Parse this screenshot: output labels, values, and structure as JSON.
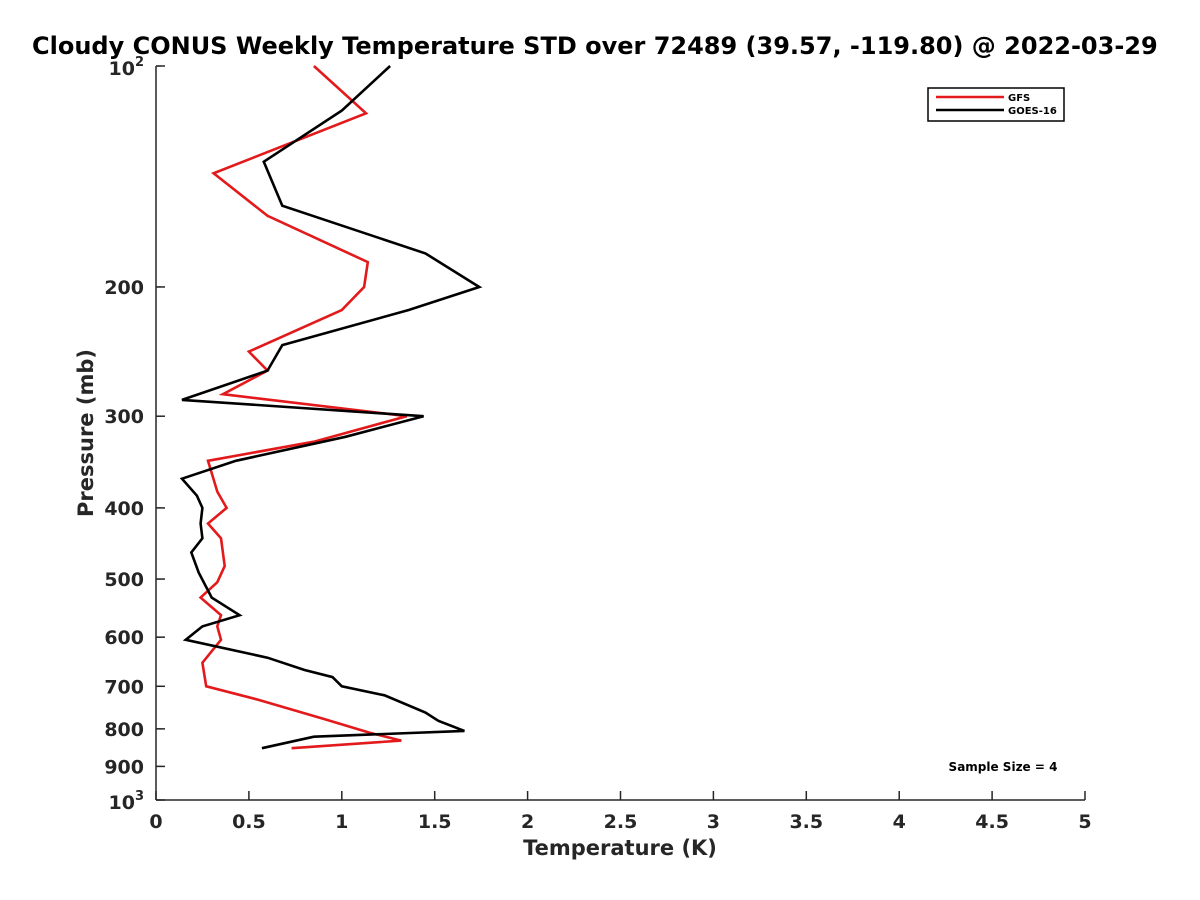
{
  "chart_data": {
    "type": "line",
    "title": "Cloudy CONUS Weekly Temperature STD over 72489 (39.57, -119.80) @ 2022-03-29",
    "xlabel": "Temperature (K)",
    "ylabel": "Pressure (mb)",
    "xlim": [
      0,
      5
    ],
    "ylim": [
      100,
      1000
    ],
    "y_scale": "log",
    "y_reversed": true,
    "x_ticks": [
      "0",
      "0.5",
      "1",
      "1.5",
      "2",
      "2.5",
      "3",
      "3.5",
      "4",
      "4.5",
      "5"
    ],
    "x_tick_values": [
      0,
      0.5,
      1,
      1.5,
      2,
      2.5,
      3,
      3.5,
      4,
      4.5,
      5
    ],
    "y_ticks": [
      {
        "value": 100,
        "base": "10",
        "exp": "2"
      },
      {
        "value": 200,
        "label": "200"
      },
      {
        "value": 300,
        "label": "300"
      },
      {
        "value": 400,
        "label": "400"
      },
      {
        "value": 500,
        "label": "500"
      },
      {
        "value": 600,
        "label": "600"
      },
      {
        "value": 700,
        "label": "700"
      },
      {
        "value": 800,
        "label": "800"
      },
      {
        "value": 900,
        "label": "900"
      },
      {
        "value": 1000,
        "base": "10",
        "exp": "3"
      }
    ],
    "legend_position": "top-right",
    "annotation": "Sample Size = 4",
    "series": [
      {
        "name": "GFS",
        "color": "#e31a1c",
        "points": [
          [
            0.85,
            100
          ],
          [
            1.13,
            116
          ],
          [
            0.31,
            140
          ],
          [
            0.6,
            160
          ],
          [
            1.14,
            185
          ],
          [
            1.12,
            200
          ],
          [
            1.0,
            215
          ],
          [
            0.5,
            245
          ],
          [
            0.6,
            260
          ],
          [
            0.36,
            280
          ],
          [
            1.35,
            300
          ],
          [
            0.85,
            325
          ],
          [
            0.28,
            345
          ],
          [
            0.33,
            380
          ],
          [
            0.38,
            400
          ],
          [
            0.28,
            420
          ],
          [
            0.35,
            440
          ],
          [
            0.37,
            480
          ],
          [
            0.33,
            505
          ],
          [
            0.24,
            530
          ],
          [
            0.35,
            560
          ],
          [
            0.33,
            580
          ],
          [
            0.35,
            605
          ],
          [
            0.25,
            650
          ],
          [
            0.27,
            700
          ],
          [
            0.55,
            730
          ],
          [
            0.9,
            775
          ],
          [
            1.15,
            810
          ],
          [
            1.32,
            830
          ],
          [
            0.73,
            850
          ]
        ]
      },
      {
        "name": "GOES-16",
        "color": "#000000",
        "points": [
          [
            1.26,
            100
          ],
          [
            1.0,
            115
          ],
          [
            0.58,
            135
          ],
          [
            0.68,
            155
          ],
          [
            1.45,
            180
          ],
          [
            1.74,
            200
          ],
          [
            1.36,
            215
          ],
          [
            0.68,
            240
          ],
          [
            0.6,
            260
          ],
          [
            0.14,
            285
          ],
          [
            1.44,
            300
          ],
          [
            1.02,
            320
          ],
          [
            0.43,
            345
          ],
          [
            0.14,
            365
          ],
          [
            0.22,
            385
          ],
          [
            0.25,
            400
          ],
          [
            0.24,
            420
          ],
          [
            0.25,
            440
          ],
          [
            0.19,
            460
          ],
          [
            0.23,
            490
          ],
          [
            0.3,
            530
          ],
          [
            0.45,
            560
          ],
          [
            0.25,
            580
          ],
          [
            0.16,
            605
          ],
          [
            0.6,
            640
          ],
          [
            0.8,
            665
          ],
          [
            0.95,
            680
          ],
          [
            1.0,
            700
          ],
          [
            1.23,
            720
          ],
          [
            1.45,
            760
          ],
          [
            1.52,
            780
          ],
          [
            1.66,
            805
          ],
          [
            0.85,
            820
          ],
          [
            0.57,
            850
          ]
        ]
      }
    ]
  }
}
